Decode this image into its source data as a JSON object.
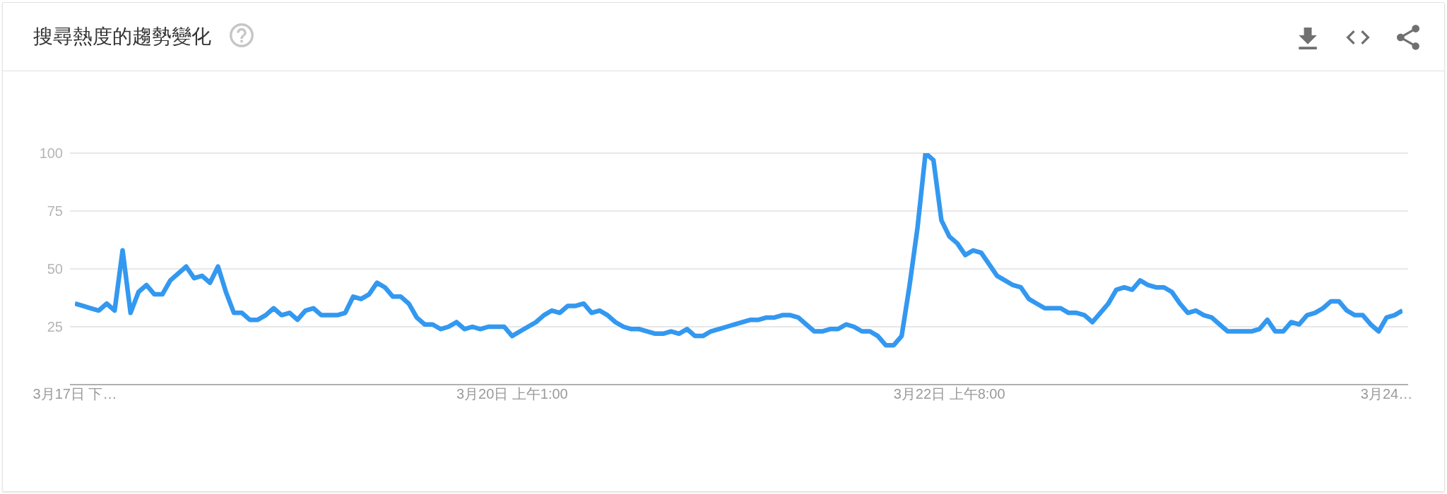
{
  "chart_data": {
    "type": "line",
    "title": "搜尋熱度的趨勢變化",
    "categories": [
      "3月17日 下…",
      null,
      null,
      null,
      null,
      null,
      null,
      null,
      null,
      null,
      null,
      null,
      null,
      null,
      null,
      null,
      null,
      null,
      null,
      null,
      null,
      null,
      null,
      null,
      null,
      null,
      null,
      null,
      null,
      null,
      null,
      null,
      null,
      null,
      null,
      null,
      null,
      null,
      null,
      null,
      null,
      null,
      null,
      null,
      null,
      null,
      null,
      null,
      null,
      null,
      null,
      null,
      null,
      null,
      null,
      "3月20日 上午1:00",
      null,
      null,
      null,
      null,
      null,
      null,
      null,
      null,
      null,
      null,
      null,
      null,
      null,
      null,
      null,
      null,
      null,
      null,
      null,
      null,
      null,
      null,
      null,
      null,
      null,
      null,
      null,
      null,
      null,
      null,
      null,
      null,
      null,
      null,
      null,
      null,
      null,
      null,
      null,
      null,
      null,
      null,
      null,
      null,
      null,
      null,
      null,
      null,
      null,
      null,
      null,
      null,
      null,
      null,
      "3月22日 上午8:00",
      null,
      null,
      null,
      null,
      null,
      null,
      null,
      null,
      null,
      null,
      null,
      null,
      null,
      null,
      null,
      null,
      null,
      null,
      null,
      null,
      null,
      null,
      null,
      null,
      null,
      null,
      null,
      null,
      null,
      null,
      null,
      null,
      null,
      null,
      null,
      null,
      null,
      null,
      null,
      null,
      null,
      null,
      null,
      null,
      null,
      null,
      null,
      null,
      null,
      null,
      null,
      null,
      null,
      null,
      "3月24…",
      null,
      null
    ],
    "series": [
      {
        "color": "#3398f0",
        "values": [
          35,
          34,
          33,
          32,
          35,
          32,
          58,
          31,
          40,
          43,
          39,
          39,
          45,
          48,
          51,
          46,
          47,
          44,
          51,
          40,
          31,
          31,
          28,
          28,
          30,
          33,
          30,
          31,
          28,
          32,
          33,
          30,
          30,
          30,
          31,
          38,
          37,
          39,
          44,
          42,
          38,
          38,
          35,
          29,
          26,
          26,
          24,
          25,
          27,
          24,
          25,
          24,
          25,
          25,
          25,
          21,
          23,
          25,
          27,
          30,
          32,
          31,
          34,
          34,
          35,
          31,
          32,
          30,
          27,
          25,
          24,
          24,
          23,
          22,
          22,
          23,
          22,
          24,
          21,
          21,
          23,
          24,
          25,
          26,
          27,
          28,
          28,
          29,
          29,
          30,
          30,
          29,
          26,
          23,
          23,
          24,
          24,
          26,
          25,
          23,
          23,
          21,
          17,
          17,
          21,
          43,
          68,
          100,
          97,
          71,
          64,
          61,
          56,
          58,
          57,
          52,
          47,
          45,
          43,
          42,
          37,
          35,
          33,
          33,
          33,
          31,
          31,
          30,
          27,
          31,
          35,
          41,
          42,
          41,
          45,
          43,
          42,
          42,
          40,
          35,
          31,
          32,
          30,
          29,
          26,
          23,
          23,
          23,
          23,
          24,
          28,
          23,
          23,
          27,
          26,
          30,
          31,
          33,
          36,
          36,
          32,
          30,
          30,
          26,
          23,
          29,
          30,
          32
        ]
      }
    ],
    "ylim": [
      0,
      100
    ],
    "yticks": [
      25,
      50,
      75,
      100
    ],
    "grid": "y",
    "marker": "none",
    "line_style": "solid"
  }
}
